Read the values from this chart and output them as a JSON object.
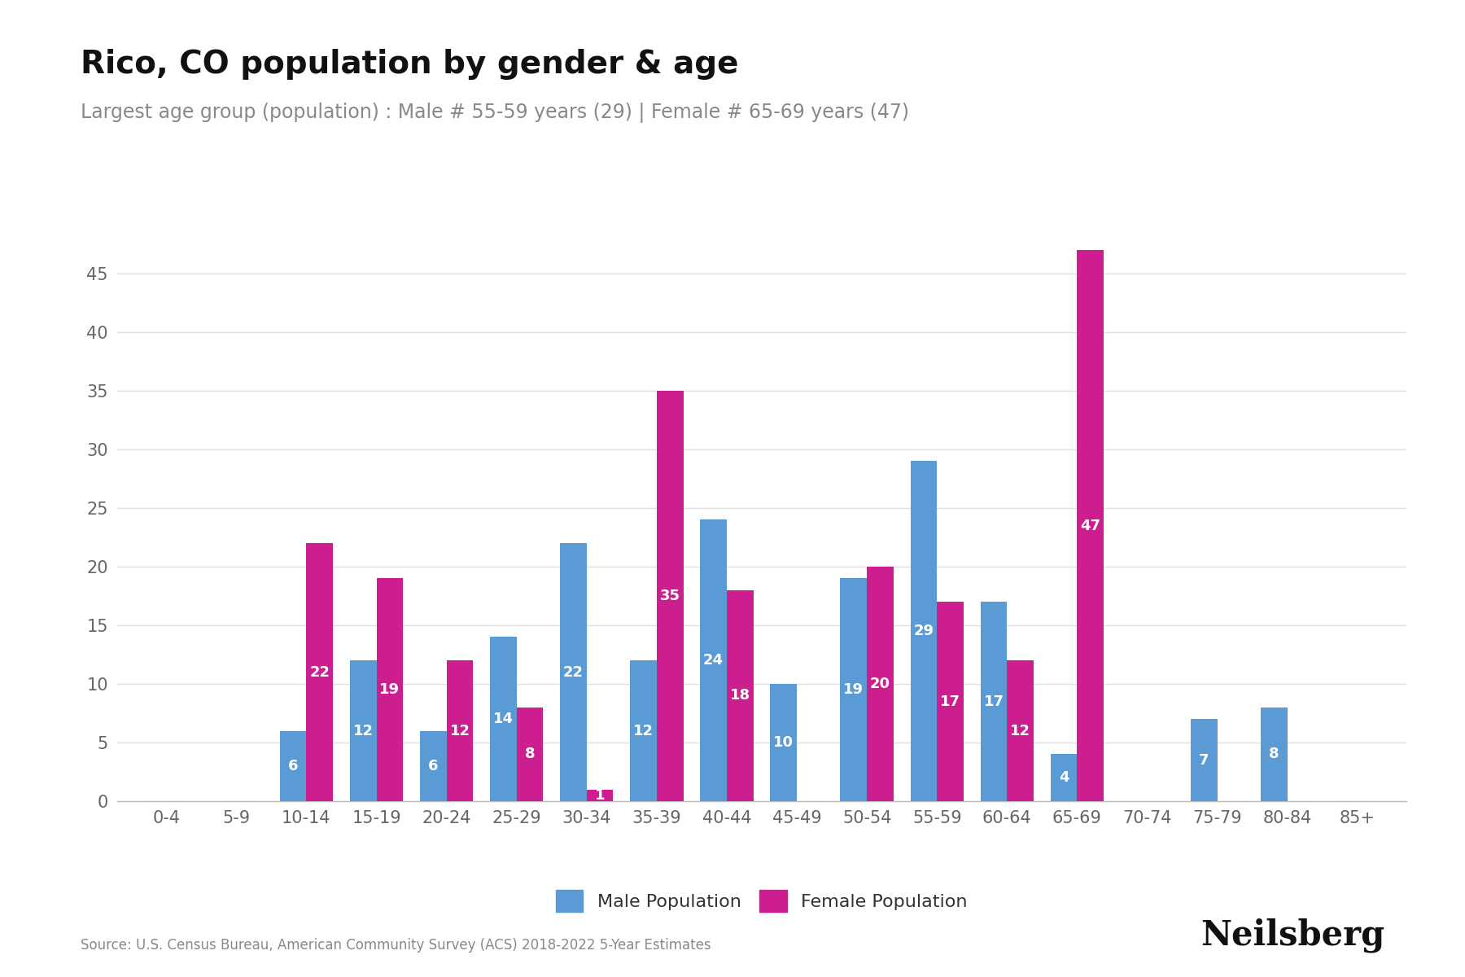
{
  "title": "Rico, CO population by gender & age",
  "subtitle": "Largest age group (population) : Male # 55-59 years (29) | Female # 65-69 years (47)",
  "age_groups": [
    "0-4",
    "5-9",
    "10-14",
    "15-19",
    "20-24",
    "25-29",
    "30-34",
    "35-39",
    "40-44",
    "45-49",
    "50-54",
    "55-59",
    "60-64",
    "65-69",
    "70-74",
    "75-79",
    "80-84",
    "85+"
  ],
  "male": [
    0,
    0,
    6,
    12,
    6,
    14,
    22,
    12,
    24,
    10,
    19,
    29,
    17,
    4,
    0,
    7,
    8,
    0
  ],
  "female": [
    0,
    0,
    22,
    19,
    12,
    8,
    1,
    35,
    18,
    0,
    20,
    17,
    12,
    47,
    0,
    0,
    0,
    0
  ],
  "male_color": "#5B9BD5",
  "female_color": "#CC1E8E",
  "bar_label_color": "#FFFFFF",
  "title_fontsize": 28,
  "subtitle_fontsize": 17,
  "tick_fontsize": 15,
  "label_fontsize": 13,
  "legend_fontsize": 16,
  "source_text": "Source: U.S. Census Bureau, American Community Survey (ACS) 2018-2022 5-Year Estimates",
  "brand_text": "Neilsberg",
  "ylim": [
    0,
    50
  ],
  "yticks": [
    0,
    5,
    10,
    15,
    20,
    25,
    30,
    35,
    40,
    45
  ],
  "background_color": "#FFFFFF",
  "grid_color": "#E0E0E0"
}
